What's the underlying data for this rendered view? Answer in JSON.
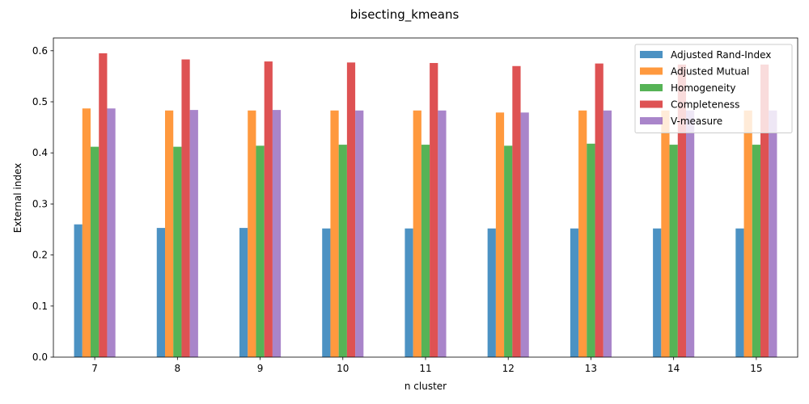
{
  "chart_data": {
    "type": "bar",
    "title": "bisecting_kmeans",
    "xlabel": "n cluster",
    "ylabel": "External index",
    "categories": [
      "7",
      "8",
      "9",
      "10",
      "11",
      "12",
      "13",
      "14",
      "15"
    ],
    "ylim": [
      0,
      0.625
    ],
    "yticks": [
      "0.0",
      "0.1",
      "0.2",
      "0.3",
      "0.4",
      "0.5",
      "0.6"
    ],
    "grid": false,
    "legend_position": "top-right",
    "series": [
      {
        "name": "Adjusted Rand-Index",
        "color": "#1f77b4",
        "values": [
          0.26,
          0.253,
          0.253,
          0.252,
          0.252,
          0.252,
          0.252,
          0.252,
          0.252
        ]
      },
      {
        "name": "Adjusted Mutual",
        "color": "#ff7f0e",
        "values": [
          0.487,
          0.483,
          0.483,
          0.483,
          0.483,
          0.479,
          0.483,
          0.483,
          0.483
        ]
      },
      {
        "name": "Homogeneity",
        "color": "#2ca02c",
        "values": [
          0.412,
          0.412,
          0.414,
          0.416,
          0.416,
          0.414,
          0.418,
          0.416,
          0.416
        ]
      },
      {
        "name": "Completeness",
        "color": "#d62728",
        "values": [
          0.595,
          0.583,
          0.579,
          0.577,
          0.576,
          0.57,
          0.575,
          0.573,
          0.573
        ]
      },
      {
        "name": "V-measure",
        "color": "#9467bd",
        "values": [
          0.487,
          0.484,
          0.484,
          0.483,
          0.483,
          0.479,
          0.483,
          0.483,
          0.483
        ]
      }
    ]
  }
}
